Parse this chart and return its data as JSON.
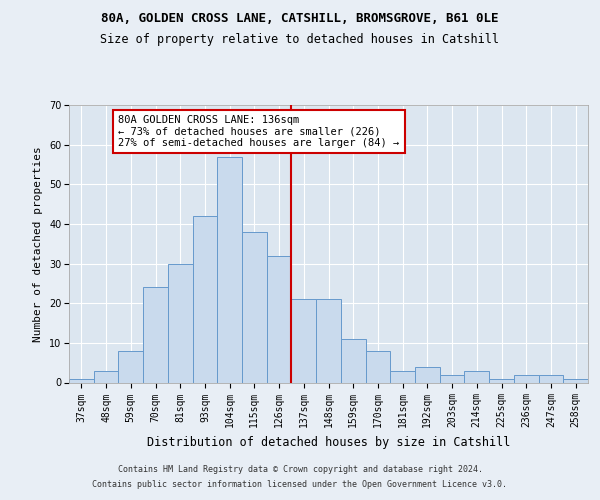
{
  "title1": "80A, GOLDEN CROSS LANE, CATSHILL, BROMSGROVE, B61 0LE",
  "title2": "Size of property relative to detached houses in Catshill",
  "xlabel": "Distribution of detached houses by size in Catshill",
  "ylabel": "Number of detached properties",
  "footer1": "Contains HM Land Registry data © Crown copyright and database right 2024.",
  "footer2": "Contains public sector information licensed under the Open Government Licence v3.0.",
  "categories": [
    "37sqm",
    "48sqm",
    "59sqm",
    "70sqm",
    "81sqm",
    "93sqm",
    "104sqm",
    "115sqm",
    "126sqm",
    "137sqm",
    "148sqm",
    "159sqm",
    "170sqm",
    "181sqm",
    "192sqm",
    "203sqm",
    "214sqm",
    "225sqm",
    "236sqm",
    "247sqm",
    "258sqm"
  ],
  "values": [
    1,
    3,
    8,
    24,
    30,
    42,
    57,
    38,
    32,
    21,
    21,
    11,
    8,
    3,
    4,
    2,
    3,
    1,
    2,
    2,
    1
  ],
  "bar_color": "#c9daed",
  "bar_edge_color": "#6699cc",
  "vline_color": "#cc0000",
  "annotation_text": "80A GOLDEN CROSS LANE: 136sqm\n← 73% of detached houses are smaller (226)\n27% of semi-detached houses are larger (84) →",
  "annotation_box_color": "#ffffff",
  "annotation_box_edge": "#cc0000",
  "ylim": [
    0,
    70
  ],
  "yticks": [
    0,
    10,
    20,
    30,
    40,
    50,
    60,
    70
  ],
  "background_color": "#e8eef5",
  "plot_background": "#dce6f0",
  "grid_color": "#ffffff",
  "title1_fontsize": 9,
  "title2_fontsize": 8.5,
  "xlabel_fontsize": 8.5,
  "ylabel_fontsize": 8,
  "tick_fontsize": 7,
  "annotation_fontsize": 7.5,
  "footer_fontsize": 6
}
